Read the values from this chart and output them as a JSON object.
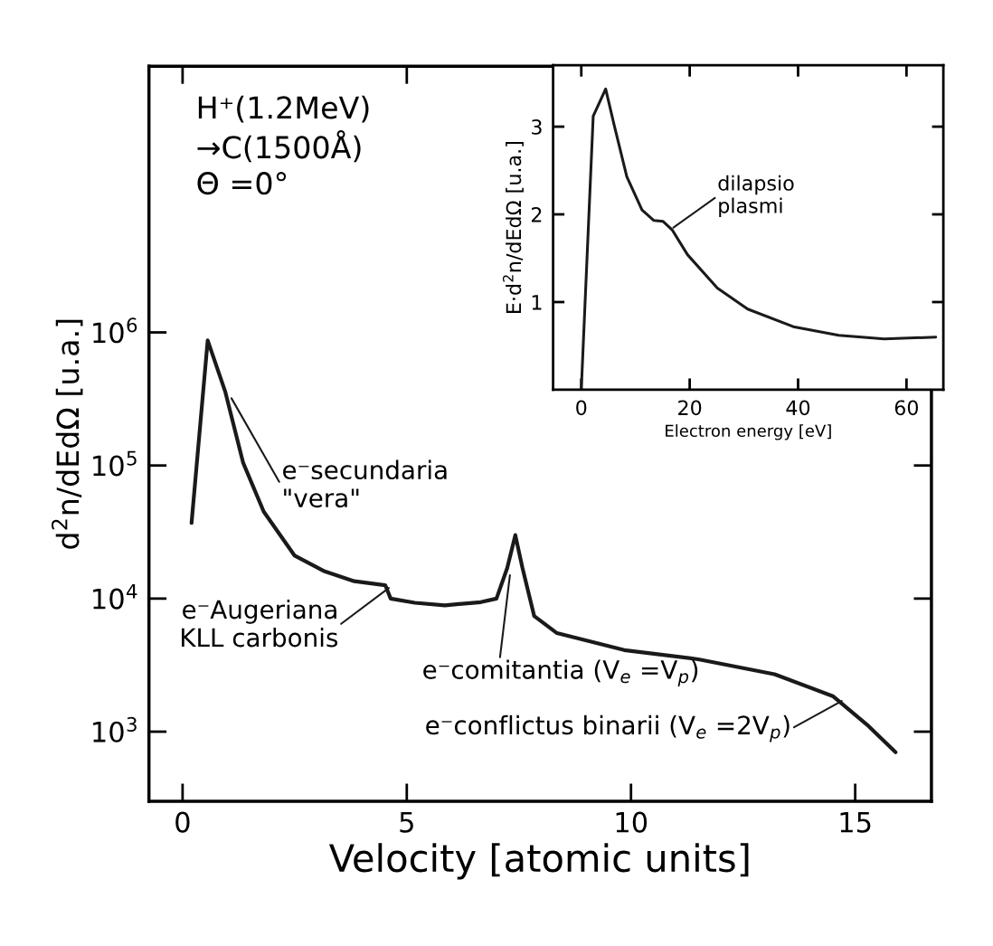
{
  "chart_data": [
    {
      "type": "line",
      "xlabel": "Velocity [atomic units]",
      "ylabel": "d$^{2}$n/dEdΩ [u.a.]",
      "log": "y",
      "xlim": [
        -0.75,
        16.7
      ],
      "ylim": [
        300,
        100000000
      ],
      "xticks": [
        0,
        5,
        10,
        15
      ],
      "yticks": [
        {
          "value": 1000,
          "label": "10$^{3}$"
        },
        {
          "value": 10000,
          "label": "10$^{4}$"
        },
        {
          "value": 100000,
          "label": "10$^{5}$"
        },
        {
          "value": 1000000,
          "label": "10$^{6}$"
        }
      ],
      "grid": false,
      "legend": false,
      "marker": "none",
      "line_style": "solid",
      "annotations": [
        "H⁺(1.2MeV)\n→C(1500Å)\nΘ =0°",
        {
          "text": "e⁻secundaria\n\"vera\"",
          "x": 1.09,
          "y": 320000
        },
        {
          "text": "e⁻Augeriana\nKLL carbonis",
          "x": 4.6,
          "y": 12000
        },
        {
          "text": "e⁻comitantia (V$_{e}$ =V$_{p}$)",
          "x": 7.3,
          "y": 15000
        },
        {
          "text": "e⁻conflictus binarii (V$_{e}$ =2V$_{p}$)",
          "x": 14.7,
          "y": 1700
        }
      ],
      "series": [
        {
          "color": "#1a1a1a",
          "x": [
            0.2,
            0.56,
            0.95,
            1.35,
            1.81,
            2.5,
            3.17,
            3.83,
            4.52,
            4.64,
            5.18,
            5.85,
            6.65,
            7.0,
            7.24,
            7.42,
            7.58,
            7.84,
            8.35,
            9.85,
            11.5,
            13.2,
            14.5,
            15.3,
            15.9
          ],
          "values": [
            37000,
            870000,
            360000,
            105000,
            45000,
            21000,
            16000,
            13500,
            12600,
            10000,
            9300,
            8900,
            9400,
            10000,
            17000,
            30000,
            17000,
            7400,
            5500,
            4100,
            3500,
            2700,
            1850,
            1100,
            700
          ]
        }
      ]
    },
    {
      "type": "line",
      "xlabel": "Electron energy [eV]",
      "ylabel": "E·d$^{2}$n/dEdΩ [u.a.]",
      "xlim": [
        -5.2,
        66.8
      ],
      "ylim": [
        0,
        3.7
      ],
      "xticks": [
        0,
        20,
        40,
        60
      ],
      "yticks": [
        1,
        2,
        3
      ],
      "grid": false,
      "legend": false,
      "marker": "none",
      "line_style": "solid",
      "annotations": [
        {
          "text": "dilapsio\nplasmi",
          "x": 17,
          "y": 1.85
        }
      ],
      "series": [
        {
          "color": "#1a1a1a",
          "x": [
            0,
            2.2,
            4.5,
            6.1,
            8.4,
            11.2,
            13.4,
            15.1,
            16.8,
            19.6,
            25.1,
            30.7,
            39.1,
            47.5,
            55.9,
            65.4
          ],
          "values": [
            0,
            3.12,
            3.43,
            3.01,
            2.43,
            2.05,
            1.93,
            1.92,
            1.82,
            1.54,
            1.16,
            0.92,
            0.72,
            0.62,
            0.58,
            0.6
          ]
        }
      ]
    }
  ]
}
